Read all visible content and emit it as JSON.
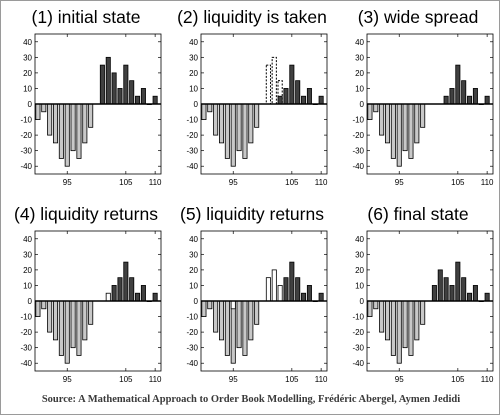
{
  "source": "Source: A Mathematical Approach to Order Book Modelling, Frédéric Abergel, Aymen Jedidi",
  "colors": {
    "bid": "#c8c8c8",
    "ask": "#404040",
    "removed": "#ffffff",
    "outline": "#000000"
  },
  "chart_data": [
    {
      "type": "bar",
      "title": "(1) initial state",
      "ylim": [
        -45,
        45
      ],
      "xlim": [
        89.5,
        111
      ],
      "yticks": [
        "40",
        "30",
        "20",
        "10",
        "0",
        "-10",
        "-20",
        "-30",
        "-40"
      ],
      "xticks": [
        "95",
        "105",
        "110"
      ],
      "bids": {
        "x": [
          90,
          91,
          92,
          93,
          94,
          95,
          96,
          97,
          98,
          99
        ],
        "values": [
          -10,
          -5,
          -20,
          -25,
          -35,
          -40,
          -30,
          -35,
          -25,
          -15
        ]
      },
      "asks": {
        "x": [
          101,
          102,
          103,
          104,
          105,
          106,
          107,
          108,
          109,
          110
        ],
        "values": [
          25,
          30,
          20,
          10,
          25,
          15,
          5,
          10,
          0,
          5
        ]
      },
      "removed": {
        "x": [],
        "values": []
      },
      "added": {
        "x": [],
        "values": []
      }
    },
    {
      "type": "bar",
      "title": "(2) liquidity is taken",
      "ylim": [
        -45,
        45
      ],
      "xlim": [
        89.5,
        111
      ],
      "yticks": [
        "40",
        "30",
        "20",
        "10",
        "0",
        "-10",
        "-20",
        "-30",
        "-40"
      ],
      "xticks": [
        "95",
        "105",
        "110"
      ],
      "bids": {
        "x": [
          90,
          91,
          92,
          93,
          94,
          95,
          96,
          97,
          98,
          99
        ],
        "values": [
          -10,
          -5,
          -20,
          -25,
          -35,
          -40,
          -30,
          -35,
          -25,
          -15
        ]
      },
      "asks": {
        "x": [
          103,
          104,
          105,
          106,
          107,
          108,
          109,
          110
        ],
        "values": [
          5,
          10,
          25,
          15,
          5,
          10,
          0,
          5
        ]
      },
      "removed": {
        "x": [
          101,
          102,
          103
        ],
        "values": [
          25,
          30,
          15
        ]
      },
      "added": {
        "x": [],
        "values": []
      }
    },
    {
      "type": "bar",
      "title": "(3) wide spread",
      "ylim": [
        -45,
        45
      ],
      "xlim": [
        89.5,
        111
      ],
      "yticks": [
        "40",
        "30",
        "20",
        "10",
        "0",
        "-10",
        "-20",
        "-30",
        "-40"
      ],
      "xticks": [
        "95",
        "105",
        "110"
      ],
      "bids": {
        "x": [
          90,
          91,
          92,
          93,
          94,
          95,
          96,
          97,
          98,
          99
        ],
        "values": [
          -10,
          -5,
          -20,
          -25,
          -35,
          -40,
          -30,
          -35,
          -25,
          -15
        ]
      },
      "asks": {
        "x": [
          103,
          104,
          105,
          106,
          107,
          108,
          109,
          110
        ],
        "values": [
          5,
          10,
          25,
          15,
          5,
          10,
          0,
          5
        ]
      },
      "removed": {
        "x": [],
        "values": []
      },
      "added": {
        "x": [],
        "values": []
      }
    },
    {
      "type": "bar",
      "title": "(4) liquidity returns",
      "ylim": [
        -45,
        45
      ],
      "xlim": [
        89.5,
        111
      ],
      "yticks": [
        "40",
        "30",
        "20",
        "10",
        "0",
        "-10",
        "-20",
        "-30",
        "-40"
      ],
      "xticks": [
        "95",
        "105",
        "110"
      ],
      "bids": {
        "x": [
          90,
          91,
          92,
          93,
          94,
          95,
          96,
          97,
          98,
          99
        ],
        "values": [
          -10,
          -5,
          -20,
          -25,
          -35,
          -40,
          -30,
          -35,
          -25,
          -15
        ]
      },
      "asks": {
        "x": [
          103,
          104,
          105,
          106,
          107,
          108,
          109,
          110
        ],
        "values": [
          10,
          15,
          25,
          15,
          5,
          10,
          0,
          5
        ]
      },
      "removed": {
        "x": [],
        "values": []
      },
      "added": {
        "x": [
          102
        ],
        "values": [
          5
        ]
      }
    },
    {
      "type": "bar",
      "title": "(5) liquidity returns",
      "ylim": [
        -45,
        45
      ],
      "xlim": [
        89.5,
        111
      ],
      "yticks": [
        "40",
        "30",
        "20",
        "10",
        "0",
        "-10",
        "-20",
        "-30",
        "-40"
      ],
      "xticks": [
        "95",
        "105",
        "110"
      ],
      "bids": {
        "x": [
          90,
          91,
          92,
          93,
          94,
          95,
          96,
          97,
          98,
          99
        ],
        "values": [
          -10,
          -5,
          -20,
          -25,
          -35,
          -40,
          -30,
          -35,
          -25,
          -15
        ]
      },
      "asks": {
        "x": [
          104,
          105,
          106,
          107,
          108,
          109,
          110
        ],
        "values": [
          15,
          25,
          15,
          5,
          10,
          0,
          5
        ]
      },
      "removed": {
        "x": [],
        "values": []
      },
      "added": {
        "x": [
          101,
          102,
          103
        ],
        "values": [
          15,
          20,
          10
        ]
      },
      "added_bids": {
        "x": [
          95
        ],
        "values": [
          -5
        ]
      }
    },
    {
      "type": "bar",
      "title": "(6) final state",
      "ylim": [
        -45,
        45
      ],
      "xlim": [
        89.5,
        111
      ],
      "yticks": [
        "40",
        "30",
        "20",
        "10",
        "0",
        "-10",
        "-20",
        "-30",
        "-40"
      ],
      "xticks": [
        "95",
        "105",
        "110"
      ],
      "bids": {
        "x": [
          90,
          91,
          92,
          93,
          94,
          95,
          96,
          97,
          98,
          99
        ],
        "values": [
          -10,
          -5,
          -20,
          -25,
          -35,
          -40,
          -30,
          -35,
          -25,
          -15
        ]
      },
      "asks": {
        "x": [
          101,
          102,
          103,
          104,
          105,
          106,
          107,
          108,
          109,
          110
        ],
        "values": [
          10,
          20,
          15,
          10,
          25,
          15,
          5,
          10,
          0,
          5
        ]
      },
      "removed": {
        "x": [],
        "values": []
      },
      "added": {
        "x": [],
        "values": []
      }
    }
  ]
}
